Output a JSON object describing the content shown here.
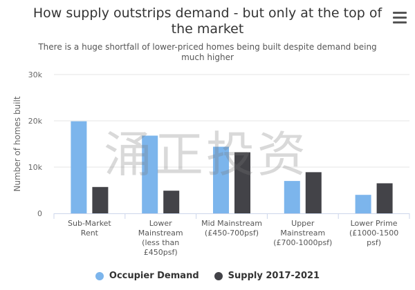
{
  "chart_data": {
    "type": "bar",
    "title": "How supply outstrips demand - but only at the top of the market",
    "subtitle": "There is a huge shortfall of lower-priced homes being built despite demand being much higher",
    "ylabel": "Number of homes built",
    "ylim": [
      0,
      30000
    ],
    "yticks": [
      "0",
      "10k",
      "20k",
      "30k"
    ],
    "grid": true,
    "legend_position": "bottom-center",
    "categories": [
      [
        "Sub-Market",
        "Rent"
      ],
      [
        "Lower",
        "Mainstream",
        "(less than",
        "£450psf)"
      ],
      [
        "Mid Mainstream",
        "(£450-700psf)"
      ],
      [
        "Upper",
        "Mainstream",
        "(£700-1000psf)"
      ],
      [
        "Lower Prime",
        "(£1000-1500",
        "psf)"
      ]
    ],
    "series": [
      {
        "name": "Occupier Demand",
        "color": "#7cb5ec",
        "values": [
          19900,
          16800,
          14400,
          7000,
          4000
        ]
      },
      {
        "name": "Supply 2017-2021",
        "color": "#434348",
        "values": [
          5700,
          4900,
          13200,
          8900,
          6500
        ]
      }
    ]
  },
  "watermark": "涌正投资"
}
